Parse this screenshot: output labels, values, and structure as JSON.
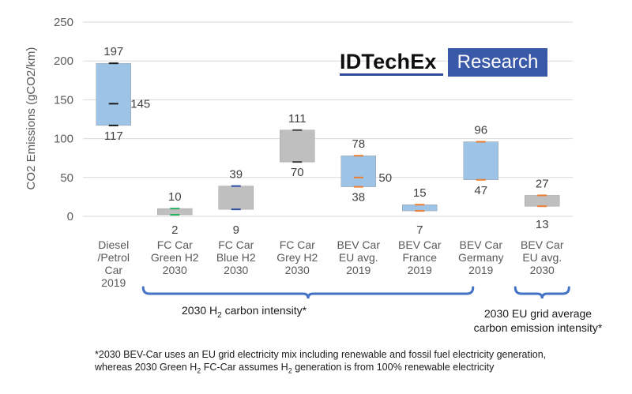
{
  "chart_data": {
    "type": "box",
    "ylabel": "CO2 Emissions (gCO2/km)",
    "ylim": [
      0,
      250
    ],
    "yticks": [
      0,
      50,
      100,
      150,
      200,
      250
    ],
    "grid": true,
    "categories": [
      "Diesel\n/Petrol\nCar\n2019",
      "FC Car\nGreen H2\n2030",
      "FC Car\nBlue H2\n2030",
      "FC Car\nGrey H2\n2030",
      "BEV Car\nEU avg.\n2019",
      "BEV Car\nFrance\n2019",
      "BEV Car\nGermany\n2019",
      "BEV Car\nEU avg.\n2030"
    ],
    "boxes": [
      {
        "low": 117,
        "high": 197,
        "mid": 145,
        "color": "#9dc3e6",
        "whisker": "#1a1a1a"
      },
      {
        "low": 2,
        "high": 10,
        "mid": null,
        "color": "#bfbfbf",
        "whisker": "#27ae60"
      },
      {
        "low": 9,
        "high": 39,
        "mid": null,
        "color": "#bfbfbf",
        "whisker": "#2e4fa3"
      },
      {
        "low": 70,
        "high": 111,
        "mid": null,
        "color": "#bfbfbf",
        "whisker": "#404040"
      },
      {
        "low": 38,
        "high": 78,
        "mid": 50,
        "color": "#9dc3e6",
        "whisker": "#ed7d31"
      },
      {
        "low": 7,
        "high": 15,
        "mid": null,
        "color": "#9dc3e6",
        "whisker": "#ed7d31"
      },
      {
        "low": 47,
        "high": 96,
        "mid": null,
        "color": "#9dc3e6",
        "whisker": "#ed7d31"
      },
      {
        "low": 13,
        "high": 27,
        "mid": null,
        "color": "#bfbfbf",
        "whisker": "#ed7d31"
      }
    ],
    "value_labels": [
      {
        "high": "197",
        "low": "117",
        "mid": "145"
      },
      {
        "high": "10",
        "low": "2"
      },
      {
        "high": "39",
        "low": "9"
      },
      {
        "high": "111",
        "low": "70"
      },
      {
        "high": "78",
        "low": "38",
        "mid": "50"
      },
      {
        "high": "15",
        "low": "7"
      },
      {
        "high": "96",
        "low": "47"
      },
      {
        "high": "27",
        "low": "13"
      }
    ]
  },
  "logo": {
    "name": "IDTechEx",
    "tag": "Research"
  },
  "brackets": {
    "h2_label_prefix": "2030 H",
    "h2_label_sub": "2",
    "h2_label_suffix": " carbon intensity*",
    "grid_label_line1": "2030 EU grid average",
    "grid_label_line2": "carbon emission intensity*"
  },
  "footnote": {
    "line1": "*2030 BEV-Car uses an EU grid electricity mix including renewable and fossil fuel electricity generation,",
    "line2_prefix": "whereas 2030 Green H",
    "line2_sub1": "2",
    "line2_middle": " FC-Car assumes H",
    "line2_sub2": "2",
    "line2_suffix": " generation is from 100% renewable electricity"
  },
  "colors": {
    "bracket": "#4472c4",
    "grid": "#d9d9d9"
  }
}
